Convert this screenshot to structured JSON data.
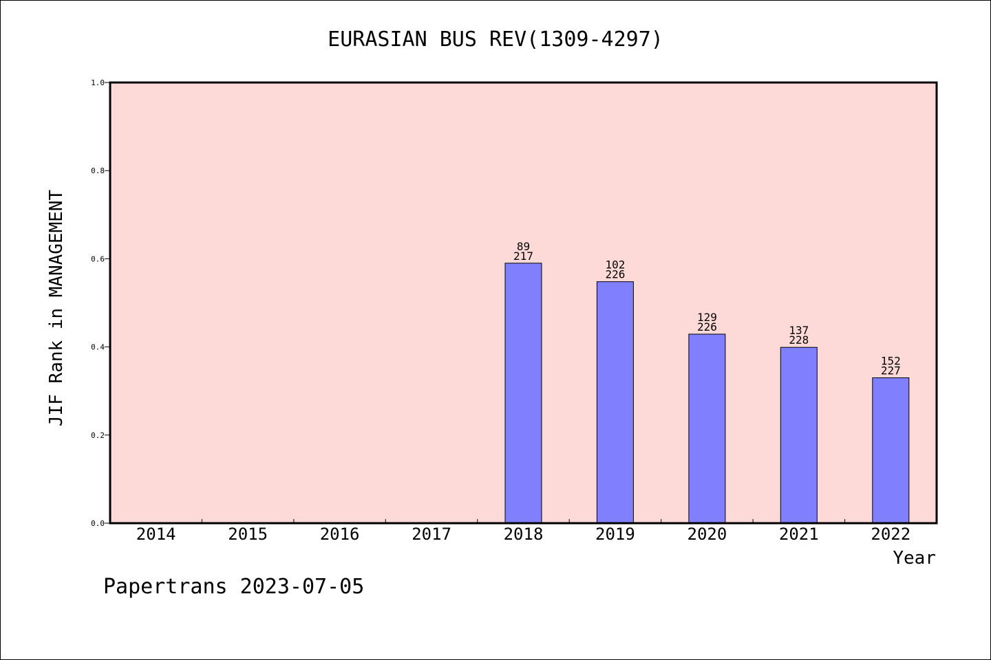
{
  "chart_data": {
    "type": "bar",
    "title": "EURASIAN BUS REV(1309-4297)",
    "xlabel": "Year",
    "ylabel": "JIF Rank in MANAGEMENT",
    "ylim": [
      0,
      1.0
    ],
    "yticks": [
      "0.0",
      "0.2",
      "0.4",
      "0.6",
      "0.8",
      "1.0"
    ],
    "categories": [
      "2014",
      "2015",
      "2016",
      "2017",
      "2018",
      "2019",
      "2020",
      "2021",
      "2022"
    ],
    "values": [
      null,
      null,
      null,
      null,
      0.59,
      0.548,
      0.429,
      0.399,
      0.33
    ],
    "labels": [
      null,
      null,
      null,
      null,
      [
        "89",
        "217"
      ],
      [
        "102",
        "226"
      ],
      [
        "129",
        "226"
      ],
      [
        "137",
        "228"
      ],
      [
        "152",
        "227"
      ]
    ],
    "grid": false,
    "colors": {
      "plot_background": "#fddad7",
      "bar_fill": "#8080ff",
      "bar_stroke": "#000000"
    }
  },
  "footer": "Papertrans 2023-07-05"
}
